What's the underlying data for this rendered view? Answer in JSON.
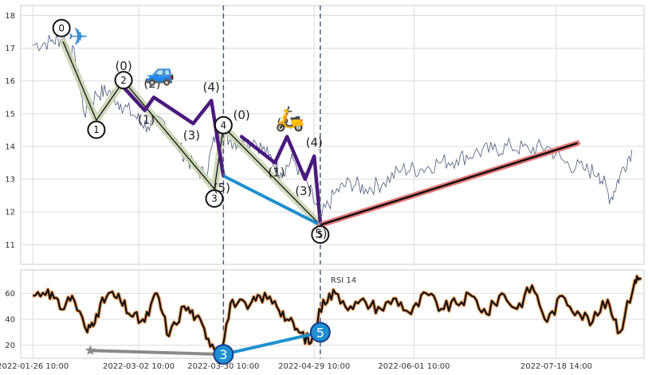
{
  "chart_data": [
    {
      "type": "line",
      "panel": "price",
      "title": "",
      "ylim": [
        10.4,
        18.3
      ],
      "y_ticks": [
        11,
        12,
        13,
        14,
        15,
        16,
        17,
        18
      ],
      "grid": true,
      "x_range": [
        "2022-01-22",
        "2022-08-16"
      ],
      "series": [
        {
          "kind": "price",
          "color": "#4a5a78",
          "x": [
            "2022-01-26",
            "2022-02-01",
            "2022-02-05",
            "2022-02-09",
            "2022-02-12",
            "2022-02-16",
            "2022-02-20",
            "2022-02-24",
            "2022-03-01",
            "2022-03-05",
            "2022-03-10",
            "2022-03-15",
            "2022-03-20",
            "2022-03-24",
            "2022-03-28",
            "2022-04-01",
            "2022-04-05",
            "2022-04-09",
            "2022-04-14",
            "2022-04-18",
            "2022-04-22",
            "2022-04-27",
            "2022-05-01",
            "2022-05-06",
            "2022-05-11",
            "2022-05-16",
            "2022-05-22",
            "2022-05-28",
            "2022-06-03",
            "2022-06-09",
            "2022-06-15",
            "2022-06-21",
            "2022-06-27",
            "2022-07-03",
            "2022-07-09",
            "2022-07-15",
            "2022-07-21",
            "2022-07-27",
            "2022-08-01",
            "2022-08-05",
            "2022-08-08",
            "2022-08-12"
          ],
          "y": [
            17.1,
            17.2,
            17.3,
            16.7,
            15.0,
            15.6,
            15.7,
            15.3,
            14.9,
            14.6,
            14.8,
            14.0,
            13.4,
            13.1,
            14.6,
            14.2,
            14.1,
            14.2,
            13.7,
            13.2,
            13.6,
            12.8,
            11.8,
            12.6,
            12.9,
            12.7,
            12.9,
            13.3,
            13.3,
            13.5,
            13.6,
            13.8,
            13.9,
            14.0,
            13.9,
            14.0,
            13.5,
            13.3,
            13.2,
            12.4,
            13.1,
            13.9
          ]
        }
      ],
      "waves": [
        {
          "degree": "primary",
          "color": "#111111",
          "x": [
            "2022-02-05",
            "2022-02-16",
            "2022-02-25",
            "2022-03-27",
            "2022-03-30",
            "2022-05-01"
          ],
          "y": [
            17.2,
            14.8,
            16.0,
            12.7,
            14.6,
            11.6
          ],
          "labels": [
            "0",
            "1",
            "2",
            "3",
            "4",
            "5"
          ]
        },
        {
          "degree": "intermediate",
          "color": "#4b1a7e",
          "x": [
            "2022-02-25",
            "2022-03-04",
            "2022-03-07",
            "2022-03-20",
            "2022-03-26",
            "2022-03-30"
          ],
          "y": [
            15.8,
            15.1,
            15.5,
            14.7,
            15.4,
            13.1
          ],
          "labels": [
            "(0)",
            "(1)",
            "(2)",
            "(3)",
            "(4)",
            "(5)"
          ]
        },
        {
          "degree": "intermediate",
          "color": "#4b1a7e",
          "x": [
            "2022-04-05",
            "2022-04-16",
            "2022-04-20",
            "2022-04-26",
            "2022-04-29",
            "2022-05-01"
          ],
          "y": [
            14.3,
            13.5,
            14.3,
            13.0,
            13.7,
            11.7
          ],
          "labels": [
            "(0)",
            "(1)",
            "(2)",
            "(3)",
            "(4)",
            "(5)"
          ]
        }
      ],
      "trend_lines": [
        {
          "color": "#1e90d0",
          "x": [
            "2022-03-30",
            "2022-05-01"
          ],
          "y": [
            13.1,
            11.6
          ]
        },
        {
          "color": "#e87878",
          "x": [
            "2022-05-01",
            "2022-07-25"
          ],
          "y": [
            11.6,
            14.1
          ]
        }
      ],
      "vlines": [
        "2022-03-30",
        "2022-05-01"
      ]
    },
    {
      "type": "line",
      "panel": "rsi",
      "title": "RSI 14",
      "ylim": [
        10,
        78
      ],
      "y_ticks": [
        20,
        40,
        60
      ],
      "grid": true,
      "series": [
        {
          "kind": "rsi",
          "color": "#111111",
          "x": [
            "2022-01-26",
            "2022-01-31",
            "2022-02-04",
            "2022-02-08",
            "2022-02-13",
            "2022-02-16",
            "2022-02-20",
            "2022-02-24",
            "2022-02-28",
            "2022-03-04",
            "2022-03-08",
            "2022-03-12",
            "2022-03-17",
            "2022-03-21",
            "2022-03-25",
            "2022-03-29",
            "2022-04-02",
            "2022-04-07",
            "2022-04-11",
            "2022-04-16",
            "2022-04-20",
            "2022-04-24",
            "2022-04-28",
            "2022-05-02",
            "2022-05-06",
            "2022-05-11",
            "2022-05-16",
            "2022-05-21",
            "2022-05-26",
            "2022-05-31",
            "2022-06-05",
            "2022-06-10",
            "2022-06-15",
            "2022-06-20",
            "2022-06-25",
            "2022-06-30",
            "2022-07-05",
            "2022-07-10",
            "2022-07-15",
            "2022-07-20",
            "2022-07-25",
            "2022-07-30",
            "2022-08-04",
            "2022-08-08",
            "2022-08-13",
            "2022-08-15"
          ],
          "y": [
            58,
            63,
            48,
            58,
            30,
            44,
            60,
            54,
            42,
            38,
            60,
            27,
            50,
            42,
            25,
            16,
            55,
            48,
            58,
            54,
            40,
            30,
            22,
            55,
            60,
            50,
            53,
            48,
            56,
            44,
            60,
            48,
            52,
            58,
            44,
            60,
            48,
            66,
            38,
            58,
            46,
            38,
            55,
            30,
            70,
            72
          ]
        }
      ],
      "trend_lines": [
        {
          "color": "#8a8a8a",
          "x": [
            "2022-02-14",
            "2022-03-30"
          ],
          "y": [
            16,
            13
          ]
        },
        {
          "color": "#1e90d0",
          "x": [
            "2022-03-30",
            "2022-05-01"
          ],
          "y": [
            13,
            30
          ]
        }
      ],
      "markers": [
        {
          "label": "3",
          "x": "2022-03-30",
          "y": 13
        },
        {
          "label": "5",
          "x": "2022-05-01",
          "y": 30
        }
      ],
      "vlines": [
        "2022-03-30",
        "2022-05-01"
      ]
    }
  ],
  "x_tick_labels": [
    "2022-01-26 10:00",
    "2022-03-02 10:00",
    "2022-03-30 10:00",
    "2022-04-29 10:00",
    "2022-06-01 10:00",
    "2022-07-18 14:00"
  ],
  "x_tick_dates": [
    "2022-01-26",
    "2022-03-02",
    "2022-03-30",
    "2022-04-29",
    "2022-06-01",
    "2022-07-18"
  ],
  "icons": [
    {
      "name": "airplane-icon",
      "glyph": "✈"
    },
    {
      "name": "car-icon",
      "glyph": "🚙"
    },
    {
      "name": "scooter-icon",
      "glyph": "🛵"
    }
  ]
}
